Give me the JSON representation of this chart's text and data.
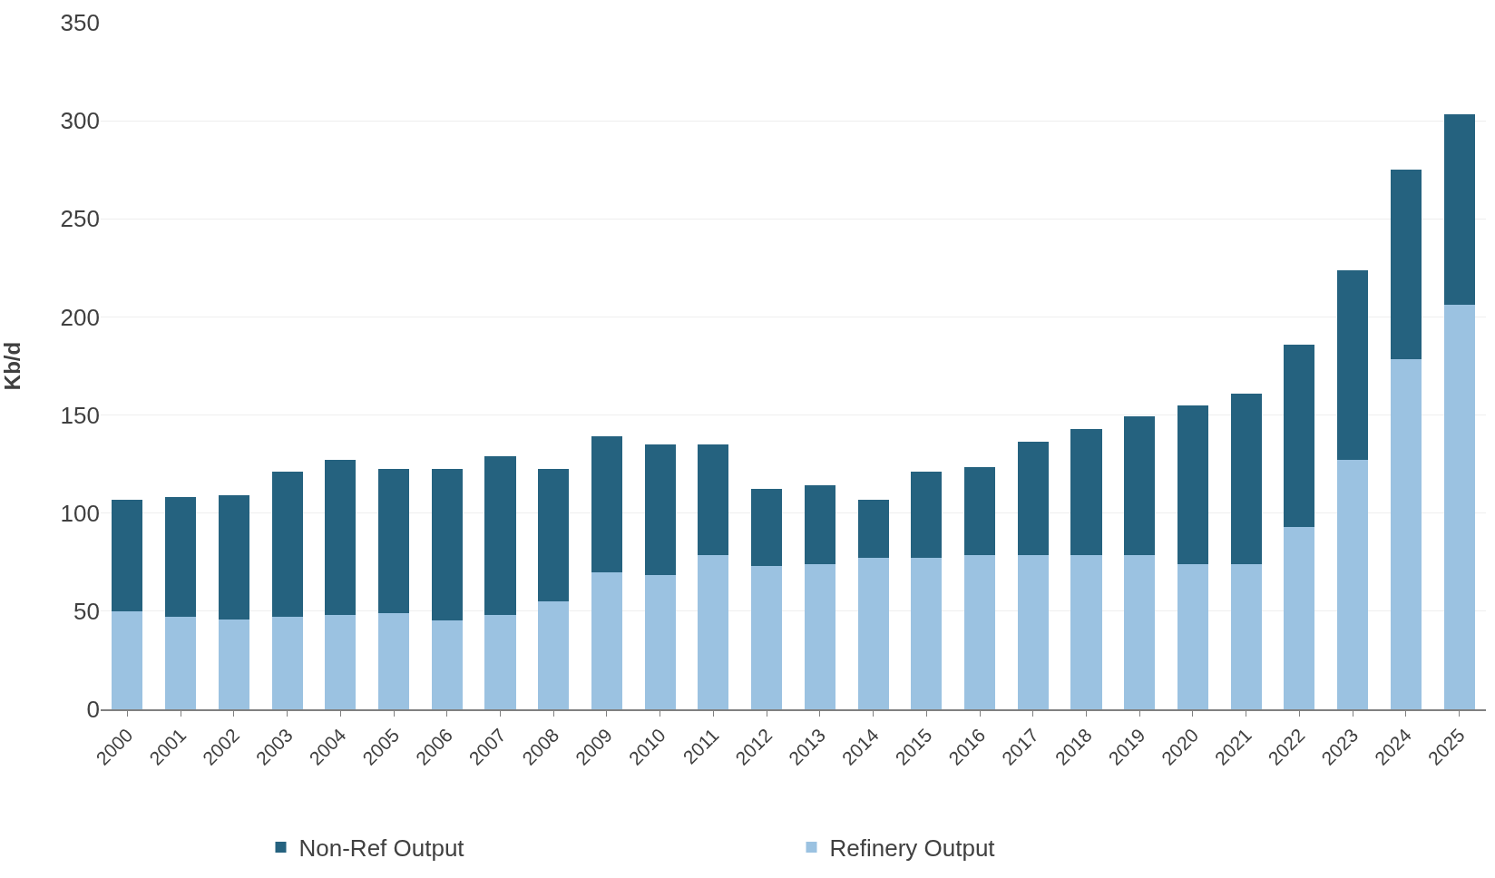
{
  "chart_data": {
    "type": "bar",
    "stacked": true,
    "ylabel": "Kb/d",
    "categories": [
      "2000",
      "2001",
      "2002",
      "2003",
      "2004",
      "2005",
      "2006",
      "2007",
      "2008",
      "2009",
      "2010",
      "2011",
      "2012",
      "2013",
      "2014",
      "2015",
      "2016",
      "2017",
      "2018",
      "2019",
      "2020",
      "2021",
      "2022",
      "2023",
      "2024",
      "2025"
    ],
    "series": [
      {
        "name": "Refinery Output",
        "color": "#9bc2e1",
        "values": [
          50,
          47,
          46,
          47,
          48,
          49,
          45.5,
          48,
          55,
          70,
          68.5,
          78.5,
          73,
          74,
          77,
          77,
          78.5,
          78.5,
          78.5,
          78.5,
          74,
          74,
          93,
          127,
          178.5,
          206
        ]
      },
      {
        "name": "Non-Ref Output",
        "color": "#25627f",
        "values": [
          57,
          61,
          63,
          74,
          79,
          73.5,
          77,
          81,
          67.5,
          69,
          66.5,
          56.5,
          39.5,
          40,
          30,
          44,
          45,
          58,
          64.5,
          71,
          81,
          87,
          93,
          97,
          96.5,
          97.5
        ]
      }
    ],
    "ylim": [
      0,
      350
    ],
    "yticks": [
      0,
      50,
      100,
      150,
      200,
      250,
      300,
      350
    ],
    "grid": "y",
    "legend": "bottom"
  }
}
